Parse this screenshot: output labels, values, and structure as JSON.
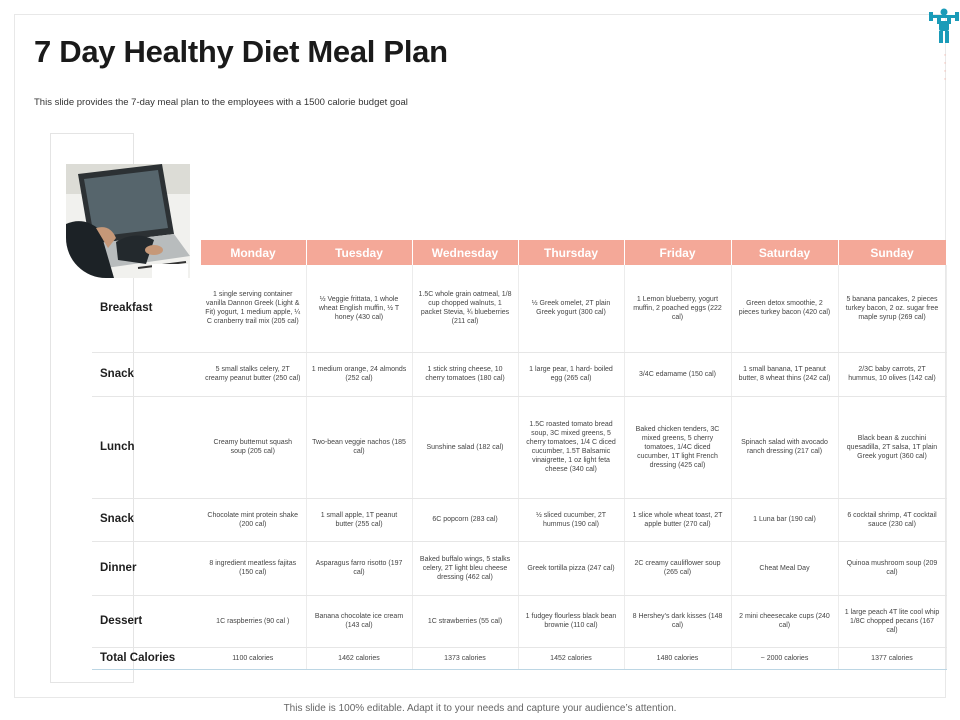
{
  "slide": {
    "title": "7 Day Healthy Diet Meal Plan",
    "subtitle": "This slide provides the 7-day meal plan to the employees with a 1500 calorie budget goal",
    "footer": "This slide is 100% editable. Adapt it to your needs and capture your audience’s attention."
  },
  "icons": {
    "logo": "weightlifter-icon",
    "photo": "laptop-businessman-photo"
  },
  "colors": {
    "header_bg": "#f4a898",
    "header_text": "#ffffff",
    "logo": "#1a9bb8"
  },
  "table": {
    "days": [
      "Monday",
      "Tuesday",
      "Wednesday",
      "Thursday",
      "Friday",
      "Saturday",
      "Sunday"
    ],
    "rows": [
      {
        "label": "Breakfast",
        "cells": [
          "1 single serving container vanilla Dannon Greek (Light & Fit) yogurt, 1 medium apple, ¼ C cranberry trail mix (205 cal)",
          "½ Veggie frittata, 1 whole wheat English muffin, ½ T honey (430 cal)",
          "1.5C whole grain oatmeal, 1/8 cup chopped walnuts, 1 packet Stevia, ¾ blueberries (211 cal)",
          "½ Greek omelet, 2T plain Greek yogurt (300 cal)",
          "1 Lemon blueberry, yogurt muffin, 2 poached eggs (222 cal)",
          "Green detox smoothie, 2 pieces turkey bacon (420 cal)",
          "5 banana pancakes, 2 pieces turkey bacon, 2 oz. sugar free maple syrup (269 cal)"
        ]
      },
      {
        "label": "Snack",
        "cells": [
          "5 small stalks celery, 2T creamy peanut butter (250 cal)",
          "1 medium orange, 24 almonds (252 cal)",
          "1 stick string cheese, 10 cherry tomatoes (180 cal)",
          "1 large pear, 1 hard- boiled egg (265 cal)",
          "3/4C edamame (150 cal)",
          "1 small banana, 1T peanut butter, 8 wheat thins (242 cal)",
          "2/3C baby carrots, 2T hummus, 10 olives (142 cal)"
        ]
      },
      {
        "label": "Lunch",
        "cells": [
          "Creamy butternut squash soup (205 cal)",
          "Two-bean veggie nachos (185 cal)",
          "Sunshine salad (182 cal)",
          "1.5C roasted tomato bread soup, 3C mixed greens, 5 cherry tomatoes, 1/4 C diced cucumber, 1.5T Balsamic vinaigrette, 1 oz light feta cheese (340 cal)",
          "Baked chicken tenders, 3C mixed greens, 5 cherry tomatoes, 1/4C diced cucumber, 1T light French dressing (425 cal)",
          "Spinach salad with avocado ranch dressing (217 cal)",
          "Black bean & zucchini quesadilla, 2T salsa, 1T plain Greek yogurt (360 cal)"
        ]
      },
      {
        "label": "Snack",
        "cells": [
          "Chocolate mint protein shake (200 cal)",
          "1 small apple, 1T peanut butter (255 cal)",
          "6C popcorn (283 cal)",
          "½ sliced cucumber, 2T hummus (190 cal)",
          "1 slice whole wheat toast, 2T apple butter (270 cal)",
          "1 Luna bar (190 cal)",
          "6 cocktail shrimp, 4T cocktail sauce (230 cal)"
        ]
      },
      {
        "label": "Dinner",
        "cells": [
          "8 ingredient meatless fajitas (150 cal)",
          "Asparagus farro risotto (197 cal)",
          "Baked buffalo wings, 5 stalks celery, 2T light bleu cheese dressing (462 cal)",
          "Greek tortilla pizza (247 cal)",
          "2C creamy cauliflower soup (265 cal)",
          "Cheat Meal Day",
          "Quinoa mushroom soup (209 cal)"
        ]
      },
      {
        "label": "Dessert",
        "cells": [
          "1C raspberries (90 cal )",
          "Banana chocolate ice cream (143 cal)",
          "1C strawberries (55 cal)",
          "1 fudgey flourless black bean brownie (110 cal)",
          "8 Hershey’s dark kisses (148 cal)",
          "2 mini cheesecake cups (240 cal)",
          "1 large peach 4T lite cool whip 1/8C chopped pecans (167 cal)"
        ]
      },
      {
        "label": "Total Calories",
        "cells": [
          "1100 calories",
          "1462 calories",
          "1373 calories",
          "1452 calories",
          "1480 calories",
          "~ 2000 calories",
          "1377 calories"
        ]
      }
    ]
  }
}
